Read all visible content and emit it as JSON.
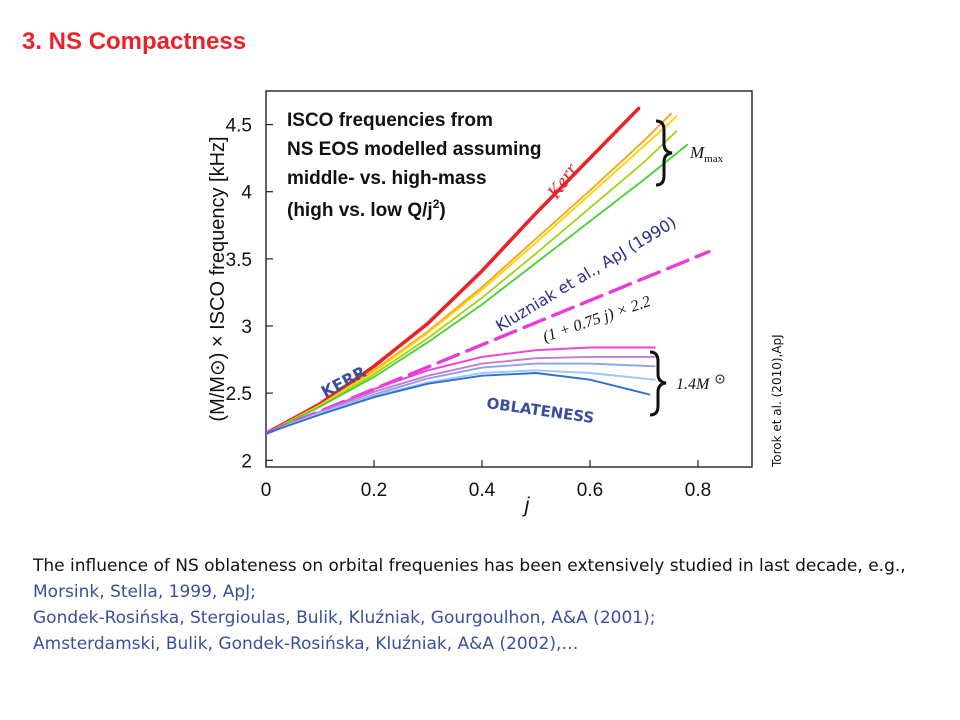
{
  "slide": {
    "title": "3. NS Compactness",
    "intro": "The influence of NS oblateness on orbital frequenies has been extensively studied in last decade, e.g.,",
    "references": [
      "Morsink, Stella, 1999, ApJ;",
      "Gondek-Rosińska, Stergioulas, Bulik, Kluźniak, Gourgoulhon, A&A (2001);",
      "Amsterdamski, Bulik, Gondek-Rosińska, Kluźniak, A&A (2002),…"
    ]
  },
  "chart_data": {
    "type": "line",
    "xlabel": "j",
    "ylabel": "(M/M⊙) × ISCO frequency [kHz]",
    "xlim": [
      0,
      0.9
    ],
    "ylim": [
      1.95,
      4.75
    ],
    "xticks": [
      0,
      0.2,
      0.4,
      0.6,
      0.8
    ],
    "xtick_labels": [
      "0",
      "0.2",
      "0.4",
      "0.6",
      "0.8"
    ],
    "yticks": [
      2,
      2.5,
      3,
      3.5,
      4,
      4.5
    ],
    "ytick_labels": [
      "2",
      "2.5",
      "3",
      "3.5",
      "4",
      "4.5"
    ],
    "grid": false,
    "series": [
      {
        "name": "Kerr",
        "color": "#e8232a",
        "style": "solid",
        "x": [
          0,
          0.1,
          0.2,
          0.3,
          0.4,
          0.5,
          0.6,
          0.69
        ],
        "y": [
          2.2,
          2.42,
          2.7,
          3.02,
          3.41,
          3.84,
          4.25,
          4.62
        ]
      },
      {
        "color": "#f5a623",
        "style": "solid",
        "x": [
          0,
          0.1,
          0.2,
          0.3,
          0.4,
          0.5,
          0.6,
          0.7,
          0.75
        ],
        "y": [
          2.2,
          2.41,
          2.67,
          2.96,
          3.29,
          3.65,
          4.01,
          4.38,
          4.58
        ]
      },
      {
        "color": "#ffd400",
        "style": "solid",
        "x": [
          0,
          0.1,
          0.2,
          0.3,
          0.4,
          0.5,
          0.6,
          0.7,
          0.76
        ],
        "y": [
          2.2,
          2.41,
          2.66,
          2.95,
          3.27,
          3.62,
          3.98,
          4.34,
          4.56
        ]
      },
      {
        "color": "#a8d21f",
        "style": "solid",
        "x": [
          0,
          0.1,
          0.2,
          0.3,
          0.4,
          0.5,
          0.6,
          0.7,
          0.76
        ],
        "y": [
          2.2,
          2.4,
          2.64,
          2.91,
          3.21,
          3.54,
          3.88,
          4.22,
          4.45
        ]
      },
      {
        "color": "#4cd137",
        "style": "solid",
        "x": [
          0,
          0.1,
          0.2,
          0.3,
          0.4,
          0.5,
          0.6,
          0.7,
          0.78
        ],
        "y": [
          2.2,
          2.4,
          2.62,
          2.88,
          3.16,
          3.47,
          3.78,
          4.09,
          4.35
        ]
      },
      {
        "name": "(1 + 0.75 j) × 2.2",
        "color": "#e83bd7",
        "style": "dashed",
        "x": [
          0,
          0.82
        ],
        "y": [
          2.2,
          3.553
        ]
      },
      {
        "color": "#f040d8",
        "style": "solid",
        "x": [
          0,
          0.1,
          0.2,
          0.3,
          0.4,
          0.5,
          0.6,
          0.72
        ],
        "y": [
          2.2,
          2.36,
          2.53,
          2.67,
          2.77,
          2.82,
          2.84,
          2.84
        ]
      },
      {
        "color": "#c47ad8",
        "style": "solid",
        "x": [
          0,
          0.1,
          0.2,
          0.3,
          0.4,
          0.5,
          0.6,
          0.72
        ],
        "y": [
          2.2,
          2.36,
          2.51,
          2.63,
          2.72,
          2.76,
          2.77,
          2.77
        ]
      },
      {
        "color": "#8ea0e8",
        "style": "solid",
        "x": [
          0,
          0.1,
          0.2,
          0.3,
          0.4,
          0.5,
          0.6,
          0.72
        ],
        "y": [
          2.2,
          2.35,
          2.49,
          2.61,
          2.69,
          2.72,
          2.72,
          2.7
        ]
      },
      {
        "color": "#9fc8f4",
        "style": "solid",
        "x": [
          0,
          0.1,
          0.2,
          0.3,
          0.4,
          0.5,
          0.6,
          0.72
        ],
        "y": [
          2.2,
          2.35,
          2.48,
          2.58,
          2.65,
          2.67,
          2.65,
          2.6
        ]
      },
      {
        "color": "#2f6fd0",
        "style": "solid",
        "x": [
          0,
          0.1,
          0.2,
          0.3,
          0.4,
          0.5,
          0.6,
          0.71
        ],
        "y": [
          2.2,
          2.34,
          2.47,
          2.57,
          2.63,
          2.65,
          2.6,
          2.49
        ]
      }
    ],
    "annotations": {
      "box_text": [
        "ISCO frequencies from",
        "NS EOS modelled assuming",
        "middle- vs. high-mass",
        "(high vs. low Q/j",
        "2",
        ")"
      ],
      "kerr_curve_label": "Kerr",
      "mmax_label": "M",
      "mmax_sub": "max",
      "mass_label": "1.4M",
      "kluzniak_label": "Kluzniak et al., ApJ (1990)",
      "formula_label": "(1 + 0.75 j) × 2.2",
      "kerr_caps_label": "KERR",
      "oblateness_label": "OBLATENESS",
      "source_label": "Torok et al. (2010),ApJ",
      "accent_color": "#e8232a",
      "blue_text_color": "#3a4f9c"
    }
  }
}
